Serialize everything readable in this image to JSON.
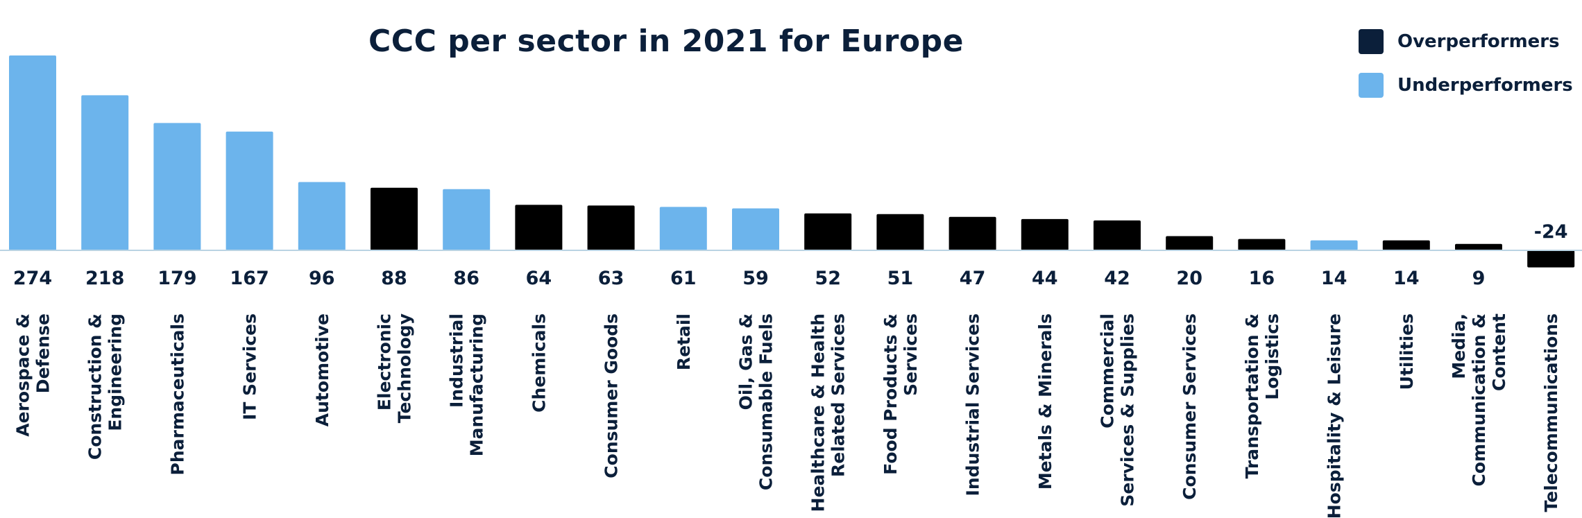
{
  "chart_data": {
    "type": "bar",
    "title": "CCC per sector in 2021 for Europe",
    "xlabel": "",
    "ylabel": "",
    "ylim": [
      -24,
      274
    ],
    "grid": false,
    "legend_position": "top-right",
    "categories": [
      "Aerospace & Defense",
      "Construction & Engineering",
      "Pharmaceuticals",
      "IT Services",
      "Automotive",
      "Electronic Technology",
      "Industrial Manufacturing",
      "Chemicals",
      "Consumer Goods",
      "Retail",
      "Oil, Gas & Consumable Fuels",
      "Healthcare & Health Related Services",
      "Food Products & Services",
      "Industrial Services",
      "Metals & Minerals",
      "Commercial Services & Supplies",
      "Consumer Services",
      "Transportation & Logistics",
      "Hospitality & Leisure",
      "Utilities",
      "Media, Communication & Content",
      "Telecommunications"
    ],
    "category_label_lines": [
      [
        "Aerospace &",
        "Defense"
      ],
      [
        "Construction &",
        "Engineering"
      ],
      [
        "Pharmaceuticals"
      ],
      [
        "IT Services"
      ],
      [
        "Automotive"
      ],
      [
        "Electronic",
        "Technology"
      ],
      [
        "Industrial",
        "Manufacturing"
      ],
      [
        "Chemicals"
      ],
      [
        "Consumer Goods"
      ],
      [
        "Retail"
      ],
      [
        "Oil, Gas &",
        "Consumable Fuels"
      ],
      [
        "Healthcare & Health",
        "Related Services"
      ],
      [
        "Food Products &",
        "Services"
      ],
      [
        "Industrial Services"
      ],
      [
        "Metals & Minerals"
      ],
      [
        "Commercial",
        "Services & Supplies"
      ],
      [
        "Consumer Services"
      ],
      [
        "Transportation &",
        "Logistics"
      ],
      [
        "Hospitality & Leisure"
      ],
      [
        "Utilities"
      ],
      [
        "Media,",
        "Communication &",
        "Content"
      ],
      [
        "Telecommunications"
      ]
    ],
    "values": [
      274,
      218,
      179,
      167,
      96,
      88,
      86,
      64,
      63,
      61,
      59,
      52,
      51,
      47,
      44,
      42,
      20,
      16,
      14,
      14,
      9,
      -24
    ],
    "value_labels": [
      "274",
      "218",
      "179",
      "167",
      "96",
      "88",
      "86",
      "64",
      "63",
      "61",
      "59",
      "52",
      "51",
      "47",
      "44",
      "42",
      "20",
      "16",
      "14",
      "14",
      "9",
      "-24"
    ],
    "groups": [
      "Underperformers",
      "Underperformers",
      "Underperformers",
      "Underperformers",
      "Underperformers",
      "Overperformers",
      "Underperformers",
      "Overperformers",
      "Overperformers",
      "Underperformers",
      "Underperformers",
      "Overperformers",
      "Overperformers",
      "Overperformers",
      "Overperformers",
      "Overperformers",
      "Overperformers",
      "Overperformers",
      "Underperformers",
      "Overperformers",
      "Overperformers",
      "Overperformers"
    ],
    "legend": [
      {
        "name": "Overperformers",
        "color": "#000000",
        "swatch_color": "#0b1f3a"
      },
      {
        "name": "Underperformers",
        "color": "#6cb4ec",
        "swatch_color": "#6cb4ec"
      }
    ]
  }
}
